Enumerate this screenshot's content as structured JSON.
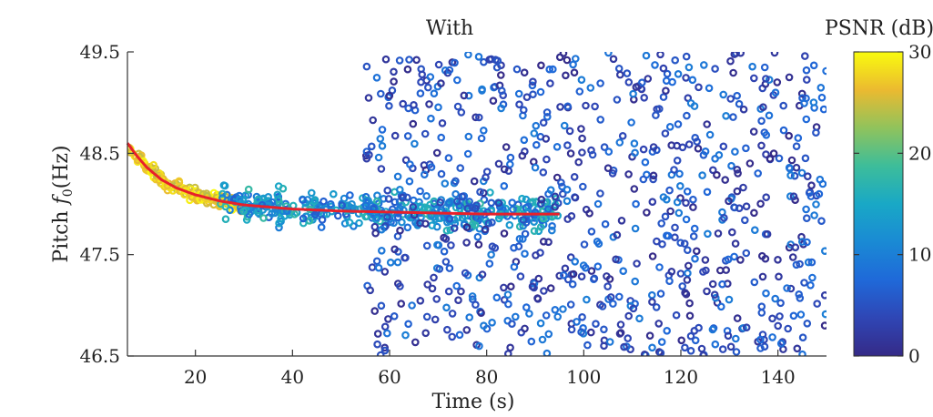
{
  "chart_data": {
    "type": "scatter",
    "title": "With",
    "xlabel": "Time (s)",
    "ylabel_prefix": "Pitch",
    "ylabel_symbol": "f",
    "ylabel_subscript": "0",
    "ylabel_unit": "(Hz)",
    "xlim": [
      6,
      150
    ],
    "ylim": [
      46.5,
      49.5
    ],
    "xticks": [
      20,
      40,
      60,
      80,
      100,
      120,
      140
    ],
    "yticks": [
      "46.5",
      "47.5",
      "48.5",
      "49.5"
    ],
    "colorbar": {
      "label": "PSNR (dB)",
      "range": [
        0,
        30
      ],
      "ticks": [
        "0",
        "10",
        "20",
        "30"
      ],
      "colormap": "parula"
    },
    "fit_curve": {
      "color": "#e8202a",
      "model": "exponential decay",
      "points": [
        [
          6,
          48.6
        ],
        [
          8,
          48.47
        ],
        [
          10,
          48.36
        ],
        [
          13,
          48.24
        ],
        [
          16,
          48.16
        ],
        [
          20,
          48.09
        ],
        [
          25,
          48.03
        ],
        [
          30,
          47.99
        ],
        [
          40,
          47.95
        ],
        [
          50,
          47.93
        ],
        [
          60,
          47.92
        ],
        [
          70,
          47.91
        ],
        [
          80,
          47.9
        ],
        [
          95,
          47.9
        ]
      ]
    },
    "clusters": [
      {
        "name": "converging decay",
        "x_range": [
          6,
          30
        ],
        "y_center": "fit",
        "spread": 0.03,
        "psnr_range": [
          24,
          30
        ],
        "approx_points": 180
      },
      {
        "name": "stable band",
        "x_range": [
          25,
          95
        ],
        "y_center": "fit",
        "spread": 0.08,
        "psnr_range": [
          6,
          18
        ],
        "approx_points": 420
      },
      {
        "name": "scattered noise",
        "x_range": [
          55,
          150
        ],
        "y_range": [
          46.5,
          49.5
        ],
        "psnr_range": [
          0,
          10
        ],
        "approx_points": 800
      }
    ]
  }
}
